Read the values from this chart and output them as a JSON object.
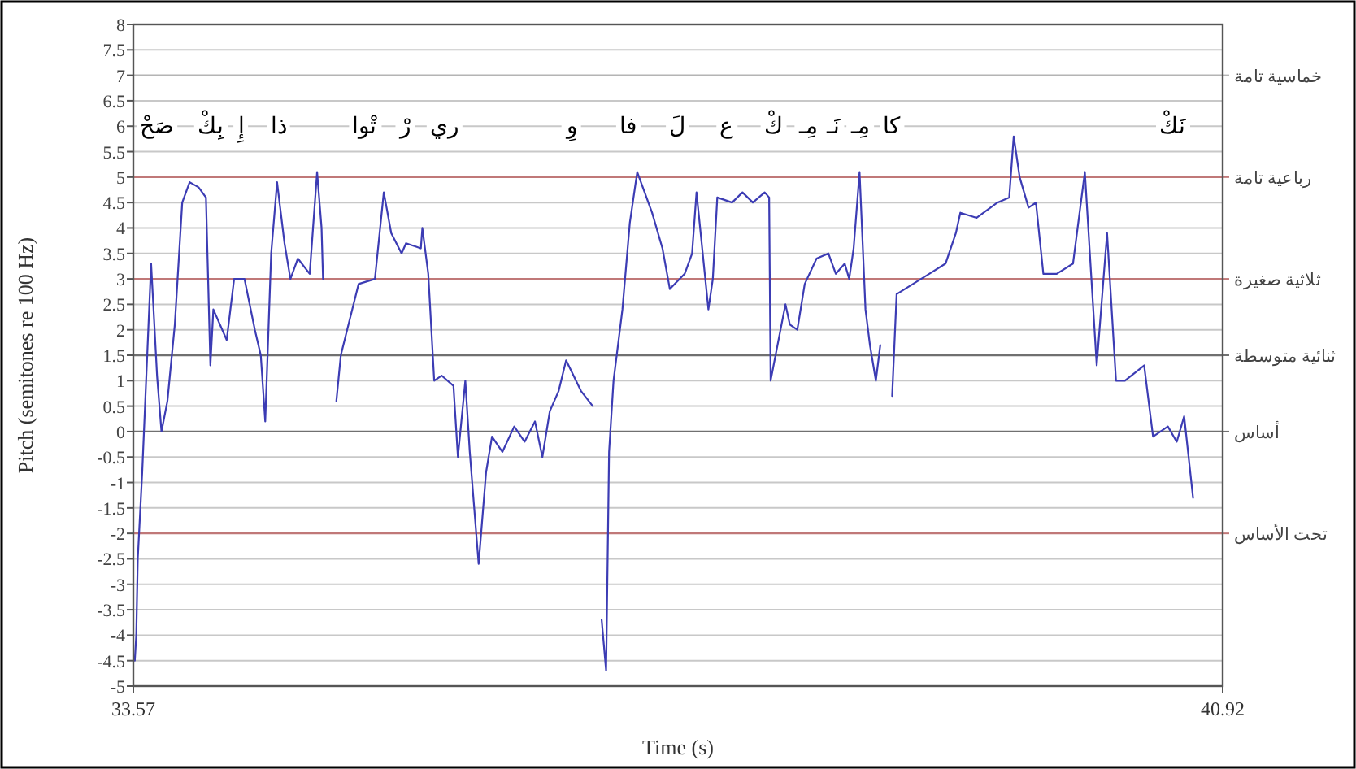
{
  "chart_data": {
    "type": "line",
    "xlabel": "Time (s)",
    "ylabel": "Pitch (semitones re 100 Hz)",
    "xlim": [
      33.57,
      40.92
    ],
    "xticks": [
      33.57,
      40.92
    ],
    "ylim": [
      -5,
      8
    ],
    "yticks": [
      -5,
      -4.5,
      -4,
      -3.5,
      -3,
      -2.5,
      -2,
      -1.5,
      -1,
      -0.5,
      0,
      0.5,
      1,
      1.5,
      2,
      2.5,
      3,
      3.5,
      4,
      4.5,
      5,
      5.5,
      6,
      6.5,
      7,
      7.5,
      8
    ],
    "grid": "y",
    "marker": "none",
    "line_style": "solid",
    "series": [
      {
        "color": "#3c3cb4",
        "x": [
          33.58,
          33.59,
          33.6,
          33.63,
          33.69,
          33.73,
          33.76,
          33.8,
          33.85,
          33.9,
          33.95,
          34.01,
          34.06,
          34.09,
          34.11,
          34.2,
          34.25,
          34.32,
          34.39,
          34.43,
          34.46,
          34.5,
          34.54,
          34.59,
          34.63,
          34.68,
          34.76,
          34.81,
          34.84,
          34.85,
          null,
          34.94,
          34.97,
          35.09,
          35.2,
          35.26,
          35.31,
          35.38,
          35.41,
          35.51,
          35.52,
          35.56,
          35.6,
          35.65,
          35.73,
          35.76,
          35.81,
          35.84,
          35.9,
          35.95,
          35.99,
          36.06,
          36.14,
          36.21,
          36.28,
          36.33,
          36.38,
          36.44,
          36.49,
          36.59,
          36.67,
          null,
          36.73,
          36.76,
          36.78,
          36.81,
          36.87,
          36.92,
          36.97,
          37.02,
          37.07,
          37.14,
          37.19,
          37.29,
          37.34,
          37.37,
          37.45,
          37.48,
          37.51,
          37.61,
          37.68,
          37.75,
          37.83,
          37.86,
          37.87,
          37.97,
          38.0,
          38.05,
          38.1,
          38.18,
          38.26,
          38.31,
          38.37,
          38.4,
          38.43,
          38.47,
          38.51,
          38.54,
          38.58,
          38.61,
          null,
          38.69,
          38.72,
          38.83,
          38.94,
          39.05,
          39.12,
          39.15,
          39.26,
          39.4,
          39.48,
          39.51,
          39.55,
          39.61,
          39.66,
          39.71,
          39.8,
          39.91,
          39.99,
          40.07,
          40.14,
          40.2,
          40.26,
          40.39,
          40.45,
          40.55,
          40.61,
          40.66,
          40.69,
          40.72
        ],
        "values": [
          -4.5,
          -4.0,
          -2.5,
          -0.8,
          3.3,
          1.1,
          0.0,
          0.6,
          2.1,
          4.5,
          4.9,
          4.8,
          4.6,
          1.3,
          2.4,
          1.8,
          3.0,
          3.0,
          2.0,
          1.5,
          0.2,
          3.5,
          4.9,
          3.7,
          3.0,
          3.4,
          3.1,
          5.1,
          4.0,
          3.0,
          null,
          0.6,
          1.5,
          2.9,
          3.0,
          4.7,
          3.9,
          3.5,
          3.7,
          3.6,
          4.0,
          3.1,
          1.0,
          1.1,
          0.9,
          -0.5,
          1.0,
          -0.4,
          -2.6,
          -0.8,
          -0.1,
          -0.4,
          0.1,
          -0.2,
          0.2,
          -0.5,
          0.4,
          0.8,
          1.4,
          0.8,
          0.5,
          null,
          -3.7,
          -4.7,
          -0.4,
          1.0,
          2.4,
          4.1,
          5.1,
          4.7,
          4.3,
          3.6,
          2.8,
          3.1,
          3.5,
          4.7,
          2.4,
          3.0,
          4.6,
          4.5,
          4.7,
          4.5,
          4.7,
          4.6,
          1.0,
          2.5,
          2.1,
          2.0,
          2.9,
          3.4,
          3.5,
          3.1,
          3.3,
          3.0,
          3.6,
          5.1,
          2.4,
          1.7,
          1.0,
          1.7,
          null,
          0.7,
          2.7,
          2.9,
          3.1,
          3.3,
          3.9,
          4.3,
          4.2,
          4.5,
          4.6,
          5.8,
          5.0,
          4.4,
          4.5,
          3.1,
          3.1,
          3.3,
          5.1,
          1.3,
          3.9,
          1.0,
          1.0,
          1.3,
          -0.1,
          0.1,
          -0.2,
          0.3,
          -0.5,
          -1.3
        ]
      }
    ],
    "ref_lines": [
      {
        "axis": "y",
        "value": 7,
        "label": "خماسية تامة",
        "color": "#b4b4b4"
      },
      {
        "axis": "y",
        "value": 5,
        "label": "رباعية تامة",
        "color": "#c07878"
      },
      {
        "axis": "y",
        "value": 3,
        "label": "ثلاثية صغيرة",
        "color": "#c07878"
      },
      {
        "axis": "y",
        "value": 1.5,
        "label": "ثنائية متوسطة",
        "color": "#707070"
      },
      {
        "axis": "y",
        "value": 0,
        "label": "أساس",
        "color": "#707070"
      },
      {
        "axis": "y",
        "value": -2,
        "label": "تحت الأساس",
        "color": "#c07878"
      }
    ],
    "annotations": [
      {
        "text": "صَحْ",
        "x": 33.73
      },
      {
        "text": "بِكْ",
        "x": 34.09
      },
      {
        "text": "إِ",
        "x": 34.3
      },
      {
        "text": "ذا",
        "x": 34.55
      },
      {
        "text": "تْوا",
        "x": 35.13
      },
      {
        "text": "رْ",
        "x": 35.41
      },
      {
        "text": "ري",
        "x": 35.67
      },
      {
        "text": "وِ",
        "x": 36.53
      },
      {
        "text": "فا",
        "x": 36.91
      },
      {
        "text": "لَ",
        "x": 37.24
      },
      {
        "text": "ع",
        "x": 37.57
      },
      {
        "text": "كْ",
        "x": 37.89
      },
      {
        "text": "مِـ",
        "x": 38.13
      },
      {
        "text": "نَـ",
        "x": 38.29
      },
      {
        "text": "مِـ",
        "x": 38.48
      },
      {
        "text": "كا",
        "x": 38.69
      },
      {
        "text": "نَكْ",
        "x": 40.58
      }
    ]
  }
}
